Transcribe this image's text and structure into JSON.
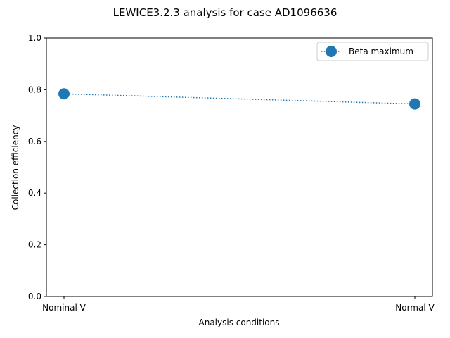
{
  "chart_data": {
    "type": "line",
    "title": "LEWICE3.2.3 analysis for case AD1096636",
    "xlabel": "Analysis conditions",
    "ylabel": "Collection efficiency",
    "categories": [
      "Nominal V",
      "Normal V"
    ],
    "ylim": [
      0,
      1
    ],
    "yticks": [
      "0.0",
      "0.2",
      "0.4",
      "0.6",
      "0.8",
      "1.0"
    ],
    "grid": false,
    "legend_position": "top-right",
    "series": [
      {
        "name": "Beta maximum",
        "values": [
          0.784,
          0.745
        ],
        "color": "#1f77b4",
        "line_style": "dotted",
        "marker": "circle"
      }
    ]
  }
}
